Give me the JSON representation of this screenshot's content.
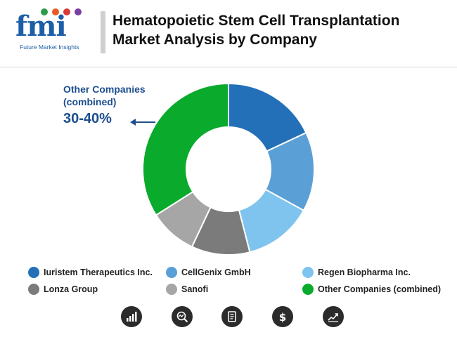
{
  "header": {
    "logo_text": "fmi",
    "logo_subtitle": "Future Market Insights",
    "title": "Hematopoietic Stem Cell Transplantation Market Analysis by Company"
  },
  "callout": {
    "label": "Other Companies (combined)",
    "value": "30-40%"
  },
  "chart_data": {
    "type": "pie",
    "style": "donut",
    "categories": [
      "Iuristem Therapeutics Inc.",
      "CellGenix GmbH",
      "Regen Biopharma Inc.",
      "Lonza Group",
      "Sanofi",
      "Other Companies (combined)"
    ],
    "values": [
      18,
      15,
      13,
      11,
      9,
      34
    ],
    "colors": [
      "#2370b8",
      "#5a9fd6",
      "#7ec4ee",
      "#7b7b7b",
      "#a6a6a6",
      "#0aaa2c"
    ],
    "annotations": [
      "Other Companies (combined) 30-40%"
    ],
    "legend_position": "bottom"
  },
  "legend": {
    "items": [
      {
        "label": "Iuristem Therapeutics Inc.",
        "color": "#2370b8"
      },
      {
        "label": "CellGenix GmbH",
        "color": "#5a9fd6"
      },
      {
        "label": "Regen Biopharma Inc.",
        "color": "#7ec4ee"
      },
      {
        "label": "Lonza Group",
        "color": "#7b7b7b"
      },
      {
        "label": "Sanofi",
        "color": "#a6a6a6"
      },
      {
        "label": "Other Companies (combined)",
        "color": "#0aaa2c"
      }
    ]
  },
  "footer_icons": [
    "bar-chart-icon",
    "chart-magnify-icon",
    "report-icon",
    "dollar-icon",
    "trend-line-icon"
  ]
}
